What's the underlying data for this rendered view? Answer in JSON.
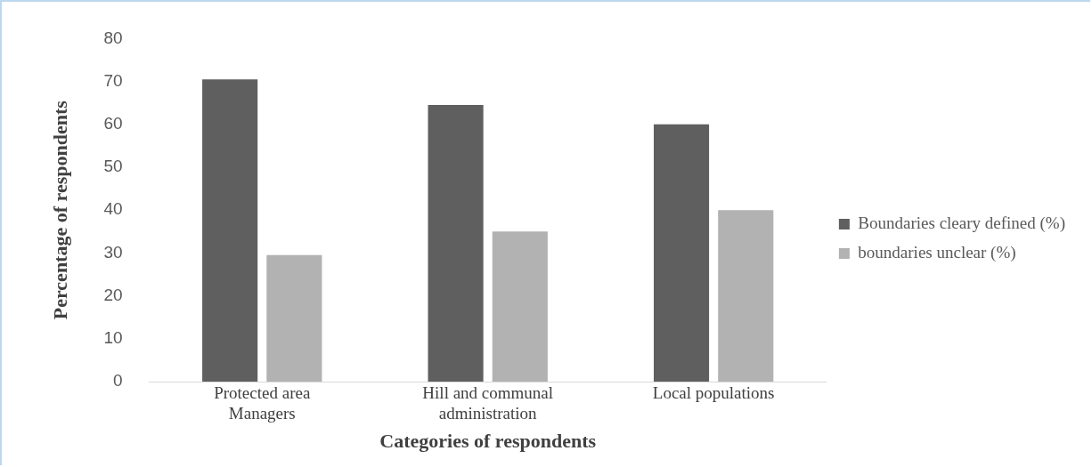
{
  "chart_data": {
    "type": "bar",
    "xlabel": "Categories of respondents",
    "ylabel": "Percentage of respondents",
    "categories": [
      "Protected area Managers",
      "Hill and communal administration",
      "Local populations"
    ],
    "series": [
      {
        "name": "Boundaries cleary defined (%)",
        "color": "#5f5f5f",
        "values": [
          70.5,
          64.5,
          60
        ]
      },
      {
        "name": "boundaries unclear (%)",
        "color": "#b2b2b2",
        "values": [
          29.5,
          35,
          40
        ]
      }
    ],
    "ylim": [
      0,
      80
    ],
    "yticks": [
      0,
      10,
      20,
      30,
      40,
      50,
      60,
      70,
      80
    ],
    "grid": false,
    "legend": "right"
  }
}
